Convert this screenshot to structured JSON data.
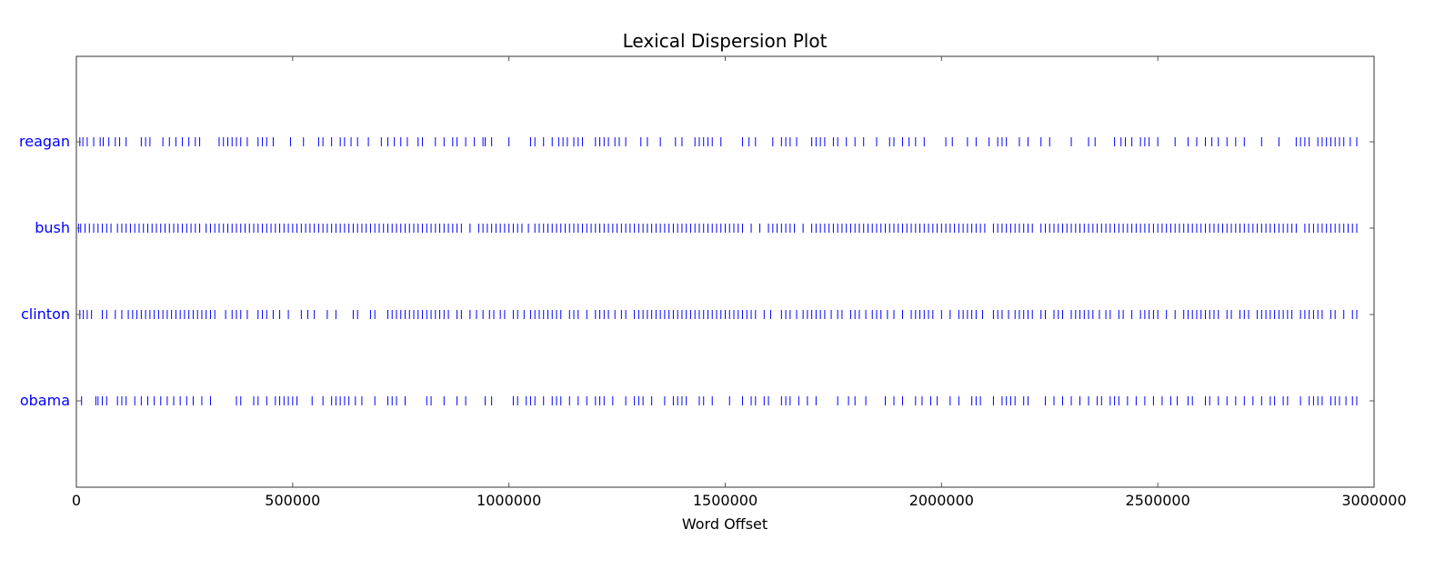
{
  "chart_data": {
    "type": "scatter",
    "title": "Lexical Dispersion Plot",
    "xlabel": "Word Offset",
    "ylabel": "",
    "xlim": [
      0,
      3000000
    ],
    "xticks": [
      "0",
      "500000",
      "1000000",
      "1500000",
      "2000000",
      "2500000",
      "3000000"
    ],
    "grid": false,
    "marker": "|",
    "color": "#0000ff",
    "series": [
      {
        "name": "reagan",
        "x": [
          0,
          8000,
          15000,
          25000,
          40000,
          55000,
          62000,
          75000,
          90000,
          100000,
          115000,
          150000,
          160000,
          170000,
          200000,
          215000,
          230000,
          245000,
          260000,
          275000,
          285000,
          330000,
          340000,
          350000,
          360000,
          370000,
          380000,
          395000,
          420000,
          430000,
          440000,
          455000,
          495000,
          525000,
          560000,
          570000,
          590000,
          610000,
          620000,
          635000,
          650000,
          675000,
          705000,
          720000,
          735000,
          750000,
          765000,
          790000,
          800000,
          830000,
          850000,
          870000,
          880000,
          900000,
          920000,
          940000,
          945000,
          960000,
          1000000,
          1050000,
          1060000,
          1080000,
          1100000,
          1115000,
          1125000,
          1135000,
          1150000,
          1160000,
          1170000,
          1200000,
          1210000,
          1220000,
          1230000,
          1245000,
          1255000,
          1270000,
          1305000,
          1320000,
          1350000,
          1385000,
          1400000,
          1430000,
          1440000,
          1450000,
          1460000,
          1470000,
          1490000,
          1540000,
          1555000,
          1570000,
          1610000,
          1630000,
          1640000,
          1650000,
          1665000,
          1700000,
          1710000,
          1720000,
          1730000,
          1750000,
          1760000,
          1780000,
          1800000,
          1820000,
          1850000,
          1880000,
          1890000,
          1910000,
          1925000,
          1940000,
          1960000,
          2010000,
          2025000,
          2060000,
          2080000,
          2110000,
          2130000,
          2140000,
          2150000,
          2180000,
          2200000,
          2230000,
          2250000,
          2300000,
          2340000,
          2355000,
          2400000,
          2415000,
          2425000,
          2440000,
          2460000,
          2470000,
          2480000,
          2500000,
          2540000,
          2570000,
          2590000,
          2610000,
          2625000,
          2640000,
          2660000,
          2680000,
          2700000,
          2740000,
          2780000,
          2820000,
          2830000,
          2840000,
          2850000,
          2870000,
          2880000,
          2890000,
          2900000,
          2910000,
          2920000,
          2930000,
          2945000,
          2960000
        ]
      },
      {
        "name": "bush",
        "x": [
          0,
          5000,
          10000,
          20000,
          30000,
          40000,
          50000,
          60000,
          70000,
          80000,
          95000,
          105000,
          115000,
          125000,
          135000,
          145000,
          155000,
          165000,
          175000,
          185000,
          195000,
          205000,
          215000,
          225000,
          235000,
          245000,
          255000,
          265000,
          275000,
          285000,
          300000,
          310000,
          320000,
          330000,
          340000,
          350000,
          360000,
          370000,
          380000,
          390000,
          400000,
          410000,
          420000,
          430000,
          440000,
          450000,
          460000,
          470000,
          480000,
          490000,
          500000,
          510000,
          520000,
          530000,
          540000,
          550000,
          560000,
          570000,
          580000,
          590000,
          600000,
          610000,
          620000,
          630000,
          640000,
          650000,
          660000,
          670000,
          680000,
          690000,
          700000,
          710000,
          720000,
          730000,
          740000,
          750000,
          760000,
          770000,
          780000,
          790000,
          800000,
          810000,
          820000,
          830000,
          840000,
          850000,
          860000,
          870000,
          880000,
          890000,
          910000,
          930000,
          940000,
          950000,
          960000,
          970000,
          980000,
          990000,
          1000000,
          1010000,
          1020000,
          1030000,
          1045000,
          1060000,
          1070000,
          1080000,
          1090000,
          1100000,
          1110000,
          1120000,
          1130000,
          1140000,
          1150000,
          1160000,
          1170000,
          1180000,
          1190000,
          1200000,
          1210000,
          1220000,
          1230000,
          1240000,
          1250000,
          1260000,
          1270000,
          1280000,
          1290000,
          1300000,
          1310000,
          1320000,
          1330000,
          1340000,
          1350000,
          1360000,
          1370000,
          1380000,
          1390000,
          1400000,
          1410000,
          1420000,
          1430000,
          1440000,
          1450000,
          1460000,
          1470000,
          1480000,
          1490000,
          1500000,
          1510000,
          1520000,
          1530000,
          1540000,
          1560000,
          1580000,
          1600000,
          1610000,
          1620000,
          1630000,
          1640000,
          1650000,
          1660000,
          1680000,
          1700000,
          1710000,
          1720000,
          1730000,
          1740000,
          1750000,
          1760000,
          1770000,
          1780000,
          1790000,
          1800000,
          1810000,
          1820000,
          1830000,
          1840000,
          1850000,
          1860000,
          1870000,
          1880000,
          1890000,
          1900000,
          1910000,
          1920000,
          1930000,
          1940000,
          1950000,
          1960000,
          1970000,
          1980000,
          1990000,
          2000000,
          2010000,
          2020000,
          2030000,
          2040000,
          2050000,
          2060000,
          2070000,
          2080000,
          2090000,
          2100000,
          2120000,
          2130000,
          2140000,
          2150000,
          2160000,
          2170000,
          2180000,
          2190000,
          2200000,
          2210000,
          2230000,
          2240000,
          2250000,
          2260000,
          2270000,
          2280000,
          2290000,
          2300000,
          2310000,
          2320000,
          2330000,
          2340000,
          2350000,
          2360000,
          2370000,
          2380000,
          2390000,
          2400000,
          2410000,
          2420000,
          2430000,
          2440000,
          2450000,
          2460000,
          2470000,
          2480000,
          2490000,
          2500000,
          2510000,
          2520000,
          2530000,
          2540000,
          2550000,
          2560000,
          2570000,
          2580000,
          2590000,
          2600000,
          2610000,
          2620000,
          2630000,
          2640000,
          2650000,
          2660000,
          2670000,
          2680000,
          2690000,
          2700000,
          2710000,
          2720000,
          2730000,
          2740000,
          2750000,
          2760000,
          2770000,
          2780000,
          2790000,
          2800000,
          2810000,
          2820000,
          2840000,
          2850000,
          2860000,
          2870000,
          2880000,
          2890000,
          2900000,
          2910000,
          2920000,
          2930000,
          2940000,
          2950000,
          2960000
        ]
      },
      {
        "name": "clinton",
        "x": [
          0,
          8000,
          16000,
          25000,
          35000,
          60000,
          70000,
          90000,
          105000,
          120000,
          130000,
          140000,
          150000,
          160000,
          170000,
          180000,
          190000,
          200000,
          210000,
          220000,
          230000,
          240000,
          250000,
          260000,
          270000,
          280000,
          290000,
          300000,
          310000,
          320000,
          345000,
          360000,
          370000,
          380000,
          395000,
          420000,
          430000,
          440000,
          455000,
          470000,
          490000,
          520000,
          535000,
          550000,
          580000,
          600000,
          640000,
          650000,
          680000,
          690000,
          720000,
          730000,
          740000,
          750000,
          760000,
          770000,
          780000,
          790000,
          800000,
          810000,
          820000,
          830000,
          840000,
          850000,
          860000,
          880000,
          890000,
          910000,
          925000,
          940000,
          955000,
          965000,
          980000,
          990000,
          1010000,
          1020000,
          1035000,
          1050000,
          1060000,
          1070000,
          1080000,
          1090000,
          1100000,
          1110000,
          1120000,
          1140000,
          1150000,
          1160000,
          1180000,
          1200000,
          1210000,
          1220000,
          1230000,
          1245000,
          1260000,
          1270000,
          1290000,
          1300000,
          1310000,
          1320000,
          1330000,
          1340000,
          1350000,
          1360000,
          1370000,
          1380000,
          1390000,
          1400000,
          1410000,
          1420000,
          1430000,
          1440000,
          1450000,
          1460000,
          1470000,
          1480000,
          1490000,
          1500000,
          1510000,
          1520000,
          1530000,
          1540000,
          1550000,
          1560000,
          1570000,
          1590000,
          1605000,
          1630000,
          1640000,
          1650000,
          1665000,
          1680000,
          1690000,
          1700000,
          1710000,
          1720000,
          1730000,
          1745000,
          1760000,
          1770000,
          1790000,
          1800000,
          1810000,
          1825000,
          1840000,
          1850000,
          1860000,
          1875000,
          1890000,
          1910000,
          1930000,
          1940000,
          1950000,
          1960000,
          1970000,
          1980000,
          2000000,
          2020000,
          2040000,
          2050000,
          2060000,
          2070000,
          2080000,
          2095000,
          2120000,
          2130000,
          2140000,
          2155000,
          2170000,
          2180000,
          2190000,
          2200000,
          2210000,
          2230000,
          2240000,
          2260000,
          2270000,
          2280000,
          2300000,
          2310000,
          2320000,
          2330000,
          2340000,
          2350000,
          2365000,
          2380000,
          2390000,
          2410000,
          2420000,
          2440000,
          2460000,
          2470000,
          2480000,
          2490000,
          2500000,
          2520000,
          2540000,
          2560000,
          2570000,
          2580000,
          2590000,
          2600000,
          2610000,
          2620000,
          2630000,
          2640000,
          2660000,
          2670000,
          2690000,
          2700000,
          2710000,
          2730000,
          2740000,
          2750000,
          2760000,
          2770000,
          2780000,
          2790000,
          2800000,
          2810000,
          2830000,
          2840000,
          2850000,
          2860000,
          2870000,
          2880000,
          2900000,
          2910000,
          2930000,
          2950000,
          2960000
        ]
      },
      {
        "name": "obama",
        "x": [
          0,
          12000,
          45000,
          50000,
          60000,
          70000,
          95000,
          105000,
          115000,
          135000,
          150000,
          165000,
          180000,
          195000,
          210000,
          225000,
          240000,
          255000,
          270000,
          290000,
          310000,
          370000,
          380000,
          410000,
          420000,
          440000,
          460000,
          470000,
          480000,
          490000,
          500000,
          510000,
          545000,
          570000,
          590000,
          600000,
          610000,
          620000,
          630000,
          645000,
          660000,
          690000,
          720000,
          730000,
          740000,
          760000,
          810000,
          820000,
          850000,
          880000,
          900000,
          945000,
          960000,
          1010000,
          1020000,
          1040000,
          1050000,
          1060000,
          1080000,
          1100000,
          1110000,
          1120000,
          1140000,
          1160000,
          1180000,
          1200000,
          1210000,
          1220000,
          1240000,
          1270000,
          1290000,
          1300000,
          1310000,
          1330000,
          1360000,
          1380000,
          1390000,
          1400000,
          1410000,
          1440000,
          1450000,
          1470000,
          1510000,
          1540000,
          1560000,
          1570000,
          1590000,
          1600000,
          1630000,
          1640000,
          1650000,
          1670000,
          1690000,
          1710000,
          1760000,
          1785000,
          1800000,
          1825000,
          1870000,
          1890000,
          1910000,
          1940000,
          1955000,
          1975000,
          1990000,
          2020000,
          2040000,
          2070000,
          2080000,
          2090000,
          2120000,
          2140000,
          2150000,
          2160000,
          2170000,
          2190000,
          2200000,
          2240000,
          2260000,
          2280000,
          2300000,
          2320000,
          2340000,
          2360000,
          2370000,
          2390000,
          2400000,
          2410000,
          2430000,
          2450000,
          2470000,
          2490000,
          2510000,
          2530000,
          2545000,
          2570000,
          2580000,
          2610000,
          2620000,
          2640000,
          2660000,
          2680000,
          2700000,
          2720000,
          2740000,
          2760000,
          2770000,
          2790000,
          2800000,
          2830000,
          2850000,
          2860000,
          2870000,
          2880000,
          2900000,
          2910000,
          2920000,
          2935000,
          2950000,
          2960000
        ]
      }
    ]
  }
}
